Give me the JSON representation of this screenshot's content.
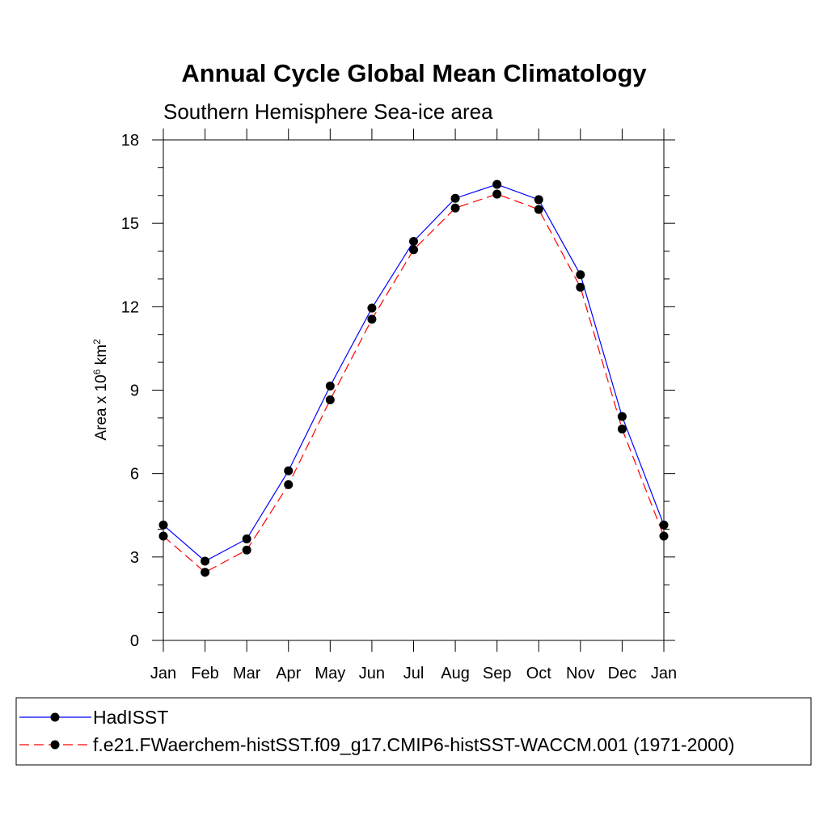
{
  "chart_data": {
    "type": "line",
    "title": "Annual Cycle Global Mean Climatology",
    "subtitle": "Southern Hemisphere Sea-ice area",
    "ylabel": "Area x 10^6 km^2",
    "ylabel_parts": {
      "main": "Area x 10",
      "exp1": "6",
      "unit": " km",
      "exp2": "2"
    },
    "xlabel": "",
    "categories": [
      "Jan",
      "Feb",
      "Mar",
      "Apr",
      "May",
      "Jun",
      "Jul",
      "Aug",
      "Sep",
      "Oct",
      "Nov",
      "Dec",
      "Jan"
    ],
    "ylim": [
      0,
      18
    ],
    "yticks": [
      0,
      3,
      6,
      9,
      12,
      15,
      18
    ],
    "yminor_step": 1,
    "series": [
      {
        "name": "HadISST",
        "color": "#0000ff",
        "dash": "solid",
        "marker": "filled-circle",
        "values": [
          4.15,
          2.85,
          3.65,
          6.1,
          9.15,
          11.95,
          14.35,
          15.9,
          16.4,
          15.85,
          13.15,
          8.05,
          4.15
        ]
      },
      {
        "name": "f.e21.FWaerchem-histSST.f09_g17.CMIP6-histSST-WACCM.001 (1971-2000)",
        "color": "#ff0000",
        "dash": "dashed",
        "marker": "filled-circle",
        "values": [
          3.75,
          2.45,
          3.25,
          5.6,
          8.65,
          11.55,
          14.05,
          15.55,
          16.05,
          15.5,
          12.7,
          7.6,
          3.75
        ]
      }
    ],
    "legend_position": "bottom"
  }
}
